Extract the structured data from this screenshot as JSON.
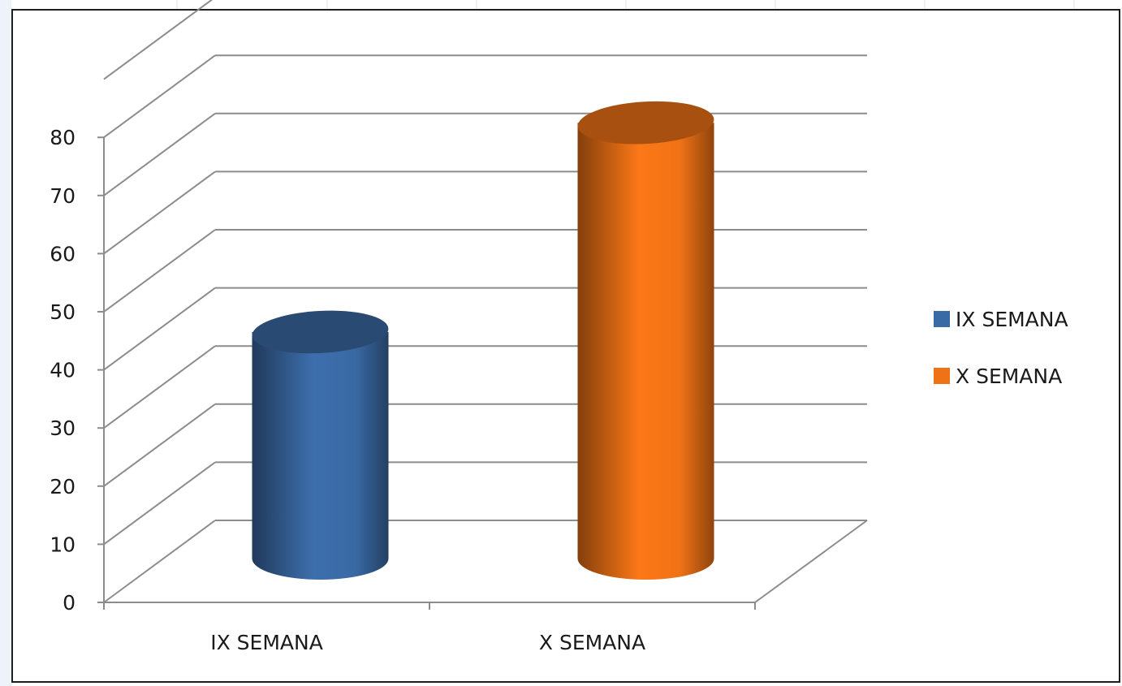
{
  "chart_data": {
    "type": "bar",
    "style": "3d-cylinder",
    "title": "",
    "xlabel": "",
    "ylabel": "",
    "categories": [
      "IX SEMANA",
      "X SEMANA"
    ],
    "series": [
      {
        "name": "IX SEMANA",
        "values": [
          44,
          null
        ],
        "color": "#3a6aa5"
      },
      {
        "name": "X SEMANA",
        "values": [
          null,
          80
        ],
        "color": "#f07216"
      }
    ],
    "ylim": [
      0,
      90
    ],
    "yticks": [
      0,
      10,
      20,
      30,
      40,
      50,
      60,
      70,
      80
    ],
    "grid": true,
    "legend": "right"
  },
  "colors": {
    "frame": "#1f1f1f",
    "gridline": "#8c8c8c",
    "axis": "#8c8c8c",
    "sheet_grid": "#dbe5f1"
  }
}
